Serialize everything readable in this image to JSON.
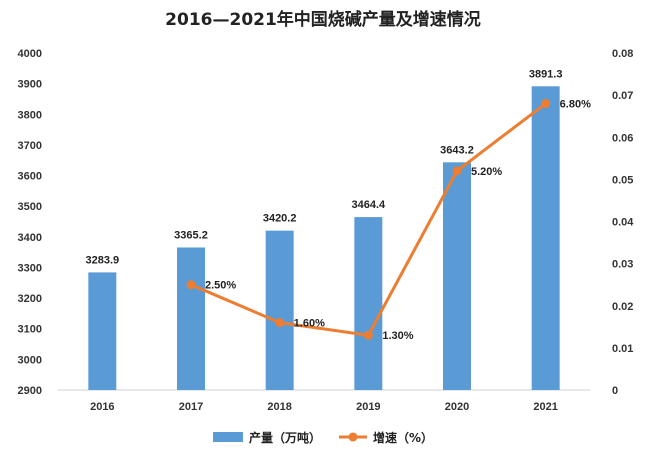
{
  "chart_data": {
    "type": "bar",
    "title": "2016—2021年中国烧碱产量及增速情况",
    "categories": [
      "2016",
      "2017",
      "2018",
      "2019",
      "2020",
      "2021"
    ],
    "series": [
      {
        "name": "产量（万吨）",
        "type": "bar",
        "axis": "left",
        "values": [
          3283.9,
          3365.2,
          3420.2,
          3464.4,
          3643.2,
          3891.3
        ],
        "labels": [
          "3283.9",
          "3365.2",
          "3420.2",
          "3464.4",
          "3643.2",
          "3891.3"
        ],
        "color": "#5B9BD5"
      },
      {
        "name": "增速（%）",
        "type": "line",
        "axis": "right",
        "values": [
          null,
          0.025,
          0.016,
          0.013,
          0.052,
          0.068
        ],
        "labels": [
          "",
          "2.50%",
          "1.60%",
          "1.30%",
          "5.20%",
          "6.80%"
        ],
        "color": "#ED7D31"
      }
    ],
    "y_left": {
      "ylim": [
        2900,
        4000
      ],
      "ticks": [
        "2900",
        "3000",
        "3100",
        "3200",
        "3300",
        "3400",
        "3500",
        "3600",
        "3700",
        "3800",
        "3900",
        "4000"
      ]
    },
    "y_right": {
      "ylim": [
        0,
        0.08
      ],
      "ticks": [
        "0",
        "0.01",
        "0.02",
        "0.03",
        "0.04",
        "0.05",
        "0.06",
        "0.07",
        "0.08"
      ]
    },
    "grid": false,
    "legend_position": "bottom"
  }
}
